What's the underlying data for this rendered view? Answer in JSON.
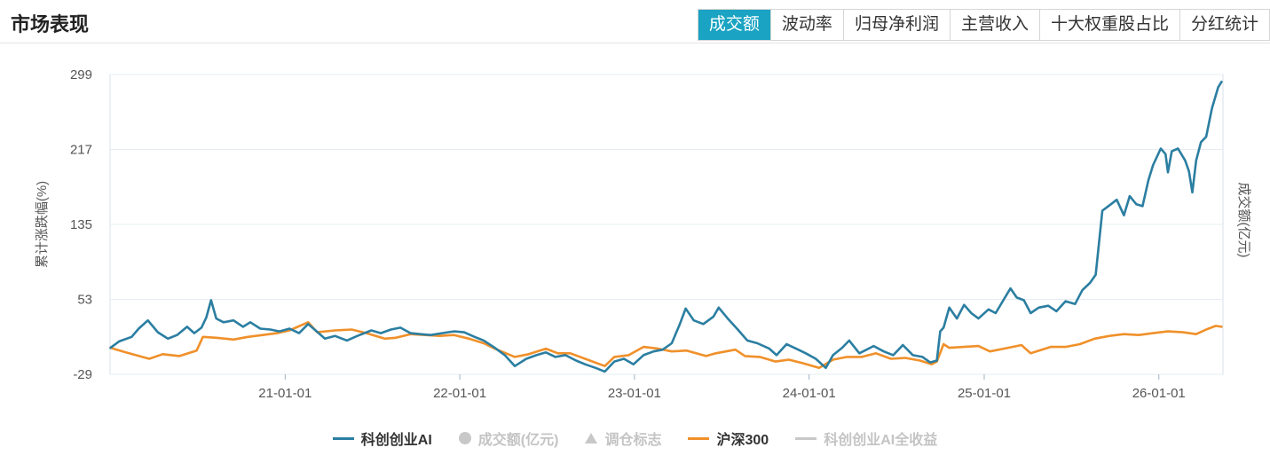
{
  "header": {
    "title": "市场表现",
    "tabs": [
      {
        "label": "成交额",
        "active": true
      },
      {
        "label": "波动率",
        "active": false
      },
      {
        "label": "归母净利润",
        "active": false
      },
      {
        "label": "主营收入",
        "active": false
      },
      {
        "label": "十大权重股占比",
        "active": false
      },
      {
        "label": "分红统计",
        "active": false
      }
    ]
  },
  "colors": {
    "accent": "#1aa3c2",
    "series_ai": "#2b7ea1",
    "series_hs300": "#f0902a",
    "inactive": "#c8c8c8"
  },
  "legend": {
    "items": [
      {
        "label": "科创创业AI",
        "enabled": true,
        "marker": "line"
      },
      {
        "label": "成交额(亿元)",
        "enabled": false,
        "marker": "dot"
      },
      {
        "label": "调仓标志",
        "enabled": false,
        "marker": "triangle"
      },
      {
        "label": "沪深300",
        "enabled": true,
        "marker": "line"
      },
      {
        "label": "科创创业AI全收益",
        "enabled": false,
        "marker": "line"
      }
    ]
  },
  "chart_data": {
    "type": "line",
    "ylabel": "累计涨跌幅(%)",
    "ylabel_right": "成交额(亿元)",
    "ylim": [
      -29,
      299
    ],
    "yticks": [
      "299",
      "217",
      "135",
      "53",
      "-29"
    ],
    "xlim": [
      "2020-01-01",
      "2026-05-15"
    ],
    "xticks": [
      {
        "date": "2021-01-01",
        "label": "21-01-01"
      },
      {
        "date": "2022-01-01",
        "label": "22-01-01"
      },
      {
        "date": "2023-01-01",
        "label": "23-01-01"
      },
      {
        "date": "2024-01-01",
        "label": "24-01-01"
      },
      {
        "date": "2025-01-01",
        "label": "25-01-01"
      },
      {
        "date": "2026-01-01",
        "label": "26-01-01"
      }
    ],
    "grid": true,
    "legend_position": "bottom",
    "series": [
      {
        "name": "科创创业AI",
        "points": [
          [
            "2020-01-02",
            0
          ],
          [
            "2020-01-20",
            7
          ],
          [
            "2020-02-15",
            12
          ],
          [
            "2020-03-01",
            21
          ],
          [
            "2020-03-20",
            30
          ],
          [
            "2020-04-10",
            17
          ],
          [
            "2020-05-01",
            10
          ],
          [
            "2020-05-20",
            14
          ],
          [
            "2020-06-10",
            23
          ],
          [
            "2020-06-25",
            16
          ],
          [
            "2020-07-10",
            22
          ],
          [
            "2020-07-20",
            33
          ],
          [
            "2020-07-30",
            52
          ],
          [
            "2020-08-10",
            32
          ],
          [
            "2020-08-25",
            28
          ],
          [
            "2020-09-15",
            30
          ],
          [
            "2020-10-05",
            23
          ],
          [
            "2020-10-20",
            28
          ],
          [
            "2020-11-10",
            21
          ],
          [
            "2020-12-01",
            20
          ],
          [
            "2020-12-20",
            18
          ],
          [
            "2021-01-10",
            21
          ],
          [
            "2021-01-30",
            16
          ],
          [
            "2021-02-18",
            26
          ],
          [
            "2021-03-10",
            17
          ],
          [
            "2021-03-25",
            10
          ],
          [
            "2021-04-15",
            13
          ],
          [
            "2021-05-10",
            8
          ],
          [
            "2021-06-01",
            13
          ],
          [
            "2021-06-30",
            19
          ],
          [
            "2021-07-20",
            16
          ],
          [
            "2021-08-10",
            20
          ],
          [
            "2021-08-30",
            22
          ],
          [
            "2021-09-20",
            16
          ],
          [
            "2021-10-10",
            15
          ],
          [
            "2021-11-01",
            14
          ],
          [
            "2021-11-25",
            16
          ],
          [
            "2021-12-20",
            18
          ],
          [
            "2022-01-10",
            17
          ],
          [
            "2022-02-01",
            12
          ],
          [
            "2022-02-20",
            8
          ],
          [
            "2022-03-15",
            0
          ],
          [
            "2022-04-05",
            -8
          ],
          [
            "2022-04-26",
            -20
          ],
          [
            "2022-05-20",
            -12
          ],
          [
            "2022-06-10",
            -8
          ],
          [
            "2022-06-30",
            -5
          ],
          [
            "2022-07-20",
            -10
          ],
          [
            "2022-08-10",
            -8
          ],
          [
            "2022-09-01",
            -14
          ],
          [
            "2022-09-20",
            -18
          ],
          [
            "2022-10-12",
            -22
          ],
          [
            "2022-10-31",
            -26
          ],
          [
            "2022-11-20",
            -15
          ],
          [
            "2022-12-10",
            -12
          ],
          [
            "2022-12-30",
            -18
          ],
          [
            "2023-01-20",
            -8
          ],
          [
            "2023-02-10",
            -4
          ],
          [
            "2023-03-01",
            -2
          ],
          [
            "2023-03-20",
            5
          ],
          [
            "2023-04-05",
            25
          ],
          [
            "2023-04-18",
            43
          ],
          [
            "2023-05-05",
            30
          ],
          [
            "2023-05-25",
            26
          ],
          [
            "2023-06-15",
            34
          ],
          [
            "2023-06-26",
            44
          ],
          [
            "2023-07-15",
            32
          ],
          [
            "2023-08-05",
            20
          ],
          [
            "2023-08-25",
            8
          ],
          [
            "2023-09-15",
            5
          ],
          [
            "2023-10-10",
            -1
          ],
          [
            "2023-10-25",
            -8
          ],
          [
            "2023-11-15",
            4
          ],
          [
            "2023-12-05",
            -1
          ],
          [
            "2023-12-25",
            -6
          ],
          [
            "2024-01-15",
            -12
          ],
          [
            "2024-02-05",
            -22
          ],
          [
            "2024-02-20",
            -8
          ],
          [
            "2024-03-10",
            0
          ],
          [
            "2024-03-25",
            8
          ],
          [
            "2024-04-15",
            -6
          ],
          [
            "2024-05-15",
            2
          ],
          [
            "2024-06-05",
            -4
          ],
          [
            "2024-06-25",
            -8
          ],
          [
            "2024-07-15",
            3
          ],
          [
            "2024-08-05",
            -8
          ],
          [
            "2024-08-25",
            -10
          ],
          [
            "2024-09-10",
            -16
          ],
          [
            "2024-09-24",
            -14
          ],
          [
            "2024-10-01",
            18
          ],
          [
            "2024-10-08",
            22
          ],
          [
            "2024-10-20",
            44
          ],
          [
            "2024-11-05",
            32
          ],
          [
            "2024-11-20",
            47
          ],
          [
            "2024-12-05",
            38
          ],
          [
            "2024-12-20",
            32
          ],
          [
            "2025-01-10",
            42
          ],
          [
            "2025-01-25",
            38
          ],
          [
            "2025-02-10",
            52
          ],
          [
            "2025-02-25",
            65
          ],
          [
            "2025-03-10",
            55
          ],
          [
            "2025-03-25",
            52
          ],
          [
            "2025-04-08",
            38
          ],
          [
            "2025-04-25",
            44
          ],
          [
            "2025-05-15",
            46
          ],
          [
            "2025-06-01",
            40
          ],
          [
            "2025-06-20",
            51
          ],
          [
            "2025-07-10",
            48
          ],
          [
            "2025-07-25",
            63
          ],
          [
            "2025-08-10",
            71
          ],
          [
            "2025-08-22",
            80
          ],
          [
            "2025-09-05",
            150
          ],
          [
            "2025-09-20",
            156
          ],
          [
            "2025-10-05",
            162
          ],
          [
            "2025-10-20",
            145
          ],
          [
            "2025-11-01",
            166
          ],
          [
            "2025-11-15",
            157
          ],
          [
            "2025-11-28",
            155
          ],
          [
            "2025-12-10",
            183
          ],
          [
            "2025-12-20",
            200
          ],
          [
            "2026-01-05",
            218
          ],
          [
            "2026-01-15",
            212
          ],
          [
            "2026-01-20",
            192
          ],
          [
            "2026-01-28",
            215
          ],
          [
            "2026-02-10",
            218
          ],
          [
            "2026-02-25",
            205
          ],
          [
            "2026-03-05",
            193
          ],
          [
            "2026-03-12",
            170
          ],
          [
            "2026-03-20",
            205
          ],
          [
            "2026-03-30",
            225
          ],
          [
            "2026-04-10",
            231
          ],
          [
            "2026-04-22",
            262
          ],
          [
            "2026-05-05",
            285
          ],
          [
            "2026-05-12",
            291
          ]
        ]
      },
      {
        "name": "沪深300",
        "points": [
          [
            "2020-01-02",
            0
          ],
          [
            "2020-02-03",
            -5
          ],
          [
            "2020-03-23",
            -12
          ],
          [
            "2020-04-20",
            -7
          ],
          [
            "2020-05-25",
            -9
          ],
          [
            "2020-06-30",
            -3
          ],
          [
            "2020-07-13",
            12
          ],
          [
            "2020-08-10",
            11
          ],
          [
            "2020-09-15",
            9
          ],
          [
            "2020-10-15",
            12
          ],
          [
            "2020-11-15",
            14
          ],
          [
            "2020-12-15",
            16
          ],
          [
            "2021-01-10",
            19
          ],
          [
            "2021-02-18",
            28
          ],
          [
            "2021-03-09",
            17
          ],
          [
            "2021-04-15",
            19
          ],
          [
            "2021-05-20",
            20
          ],
          [
            "2021-06-20",
            16
          ],
          [
            "2021-07-28",
            10
          ],
          [
            "2021-08-20",
            11
          ],
          [
            "2021-09-20",
            15
          ],
          [
            "2021-10-20",
            14
          ],
          [
            "2021-11-20",
            13
          ],
          [
            "2021-12-20",
            14
          ],
          [
            "2022-01-20",
            10
          ],
          [
            "2022-02-20",
            5
          ],
          [
            "2022-03-15",
            -1
          ],
          [
            "2022-04-26",
            -10
          ],
          [
            "2022-05-25",
            -7
          ],
          [
            "2022-06-30",
            -1
          ],
          [
            "2022-07-25",
            -6
          ],
          [
            "2022-08-20",
            -6
          ],
          [
            "2022-09-20",
            -12
          ],
          [
            "2022-10-31",
            -20
          ],
          [
            "2022-11-20",
            -10
          ],
          [
            "2022-12-20",
            -8
          ],
          [
            "2023-01-20",
            1
          ],
          [
            "2023-02-20",
            -1
          ],
          [
            "2023-03-20",
            -4
          ],
          [
            "2023-04-20",
            -3
          ],
          [
            "2023-05-31",
            -9
          ],
          [
            "2023-06-20",
            -6
          ],
          [
            "2023-07-31",
            -2
          ],
          [
            "2023-08-20",
            -9
          ],
          [
            "2023-09-20",
            -10
          ],
          [
            "2023-10-23",
            -15
          ],
          [
            "2023-11-20",
            -13
          ],
          [
            "2023-12-20",
            -17
          ],
          [
            "2024-01-22",
            -22
          ],
          [
            "2024-02-20",
            -13
          ],
          [
            "2024-03-20",
            -10
          ],
          [
            "2024-04-20",
            -10
          ],
          [
            "2024-05-20",
            -6
          ],
          [
            "2024-06-20",
            -12
          ],
          [
            "2024-07-20",
            -11
          ],
          [
            "2024-08-20",
            -14
          ],
          [
            "2024-09-13",
            -18
          ],
          [
            "2024-09-24",
            -15
          ],
          [
            "2024-10-08",
            4
          ],
          [
            "2024-10-20",
            0
          ],
          [
            "2024-11-20",
            1
          ],
          [
            "2024-12-20",
            2
          ],
          [
            "2025-01-13",
            -4
          ],
          [
            "2025-02-20",
            0
          ],
          [
            "2025-03-20",
            3
          ],
          [
            "2025-04-08",
            -6
          ],
          [
            "2025-05-20",
            1
          ],
          [
            "2025-06-20",
            1
          ],
          [
            "2025-07-20",
            4
          ],
          [
            "2025-08-20",
            10
          ],
          [
            "2025-09-20",
            13
          ],
          [
            "2025-10-20",
            15
          ],
          [
            "2025-11-20",
            14
          ],
          [
            "2025-12-20",
            16
          ],
          [
            "2026-01-20",
            18
          ],
          [
            "2026-02-20",
            17
          ],
          [
            "2026-03-20",
            15
          ],
          [
            "2026-04-10",
            20
          ],
          [
            "2026-04-30",
            24
          ],
          [
            "2026-05-12",
            23
          ]
        ]
      }
    ]
  }
}
